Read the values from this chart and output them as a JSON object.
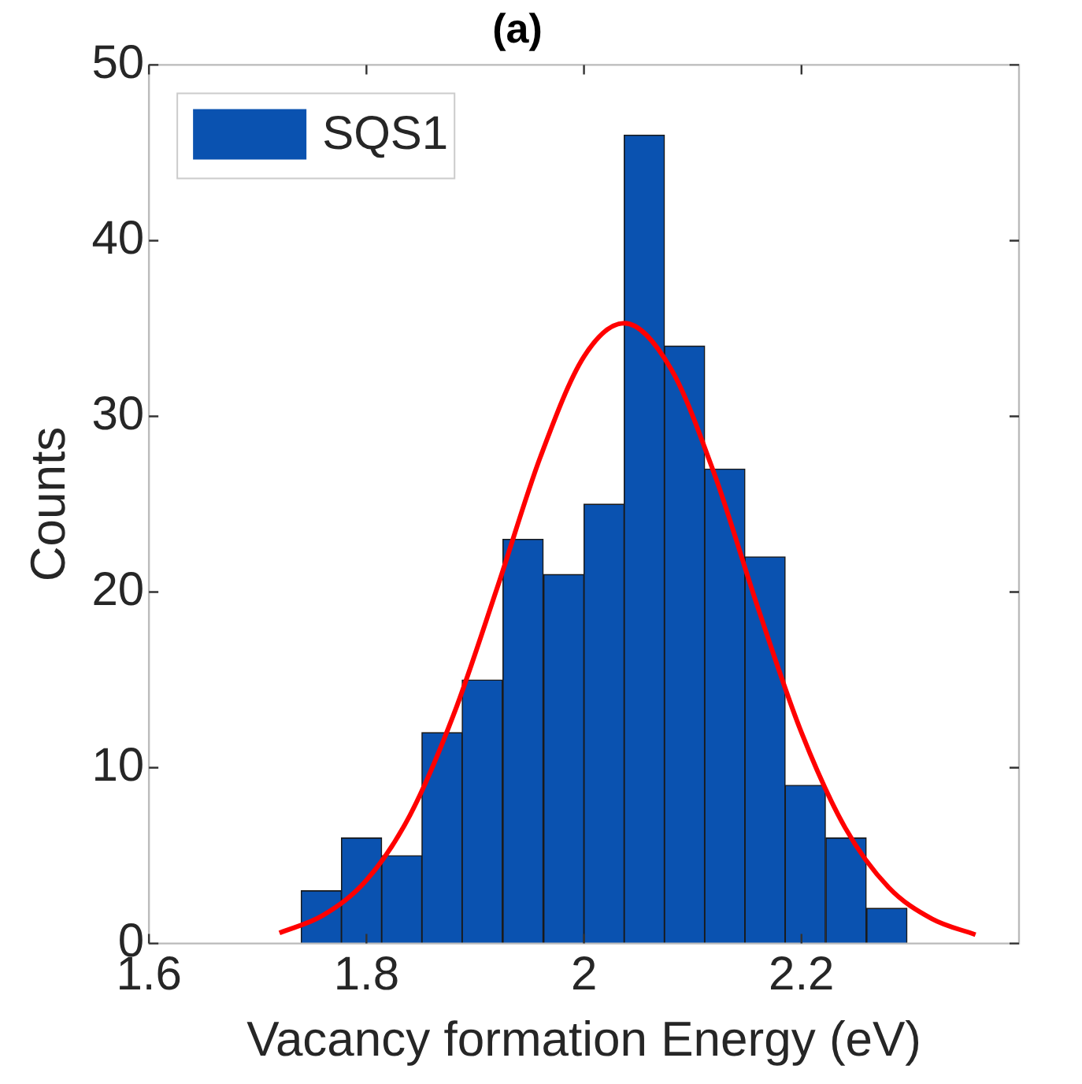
{
  "chart_data": {
    "type": "histogram",
    "title": "(a)",
    "xlabel": "Vacancy formation Energy (eV)",
    "ylabel": "Counts",
    "bins": [
      1.74,
      1.777,
      1.814,
      1.851,
      1.888,
      1.925,
      1.963,
      2.0,
      2.037,
      2.074,
      2.111,
      2.148,
      2.185,
      2.222,
      2.26,
      2.297
    ],
    "series": [
      {
        "name": "SQS1",
        "color": "#0a52b0",
        "values": [
          3,
          6,
          5,
          12,
          15,
          23,
          21,
          25,
          46,
          34,
          27,
          22,
          9,
          6,
          2
        ]
      },
      {
        "type": "line",
        "color": "#ff0000",
        "x": [
          1.72,
          1.76,
          1.8,
          1.84,
          1.88,
          1.92,
          1.96,
          2.0,
          2.037,
          2.08,
          2.12,
          2.16,
          2.2,
          2.24,
          2.28,
          2.32,
          2.36
        ],
        "values": [
          0.6,
          1.6,
          3.6,
          7.3,
          13.0,
          20.2,
          27.7,
          33.4,
          35.3,
          32.7,
          26.7,
          19.1,
          12.0,
          6.6,
          3.2,
          1.4,
          0.5
        ]
      }
    ],
    "xlim": [
      1.6,
      2.4
    ],
    "xticks": [
      1.6,
      1.8,
      2,
      2.2
    ],
    "ylim": [
      0,
      50
    ],
    "yticks": [
      0,
      10,
      20,
      30,
      40,
      50
    ],
    "grid": false,
    "legend": "top left",
    "marker": "none"
  }
}
